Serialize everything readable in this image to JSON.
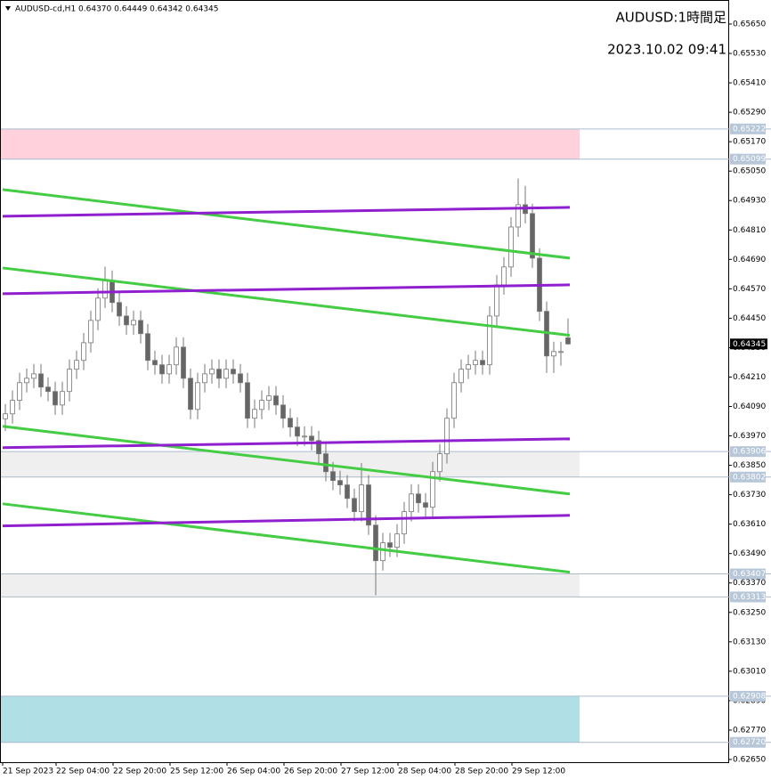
{
  "chart_data": {
    "type": "candlestick",
    "header": "AUDUSD-cd,H1  0.64370 0.64449 0.64342 0.64345",
    "annotations": [
      "AUDUSD:1時間足",
      "2023.10.02 09:41"
    ],
    "open": [
      0.6404,
      0.6406,
      0.64115,
      0.64187,
      0.64205,
      0.64223,
      0.64169,
      0.64151,
      0.64096,
      0.64151,
      0.64242,
      0.64278,
      0.6435,
      0.64441,
      0.64532,
      0.64605,
      0.64514,
      0.64459,
      0.64423,
      0.64441,
      0.64387,
      0.64278,
      0.6426,
      0.64223,
      0.6426,
      0.64332,
      0.64205,
      0.64078,
      0.64187,
      0.64223,
      0.64242,
      0.64205,
      0.64242,
      0.64223,
      0.64187,
      0.64042,
      0.64078,
      0.64115,
      0.64133,
      0.64096,
      0.64042,
      0.64006,
      0.63969,
      0.63969,
      0.63951,
      0.63897,
      0.63824,
      0.63788,
      0.6377,
      0.63715,
      0.63661,
      0.6377,
      0.63606,
      0.63461,
      0.63534,
      0.63516,
      0.6357,
      0.63661,
      0.63733,
      0.63697,
      0.63679,
      0.63824,
      0.63897,
      0.64042,
      0.64187,
      0.64242,
      0.6426,
      0.64278,
      0.6426,
      0.64459,
      0.64586,
      0.64659,
      0.64822,
      0.64913,
      0.64877,
      0.64695,
      0.64478,
      0.64296,
      0.64314,
      0.6437
    ],
    "high": [
      0.641,
      0.64155,
      0.64227,
      0.64245,
      0.64263,
      0.64263,
      0.64209,
      0.64191,
      0.64191,
      0.64282,
      0.64318,
      0.6439,
      0.64481,
      0.64572,
      0.6466,
      0.64645,
      0.64554,
      0.64499,
      0.64481,
      0.64481,
      0.64427,
      0.64318,
      0.643,
      0.643,
      0.64372,
      0.64372,
      0.64245,
      0.64227,
      0.64263,
      0.64282,
      0.64282,
      0.64282,
      0.64282,
      0.64263,
      0.64227,
      0.64118,
      0.64155,
      0.64173,
      0.64173,
      0.64136,
      0.64082,
      0.64046,
      0.64009,
      0.64009,
      0.63991,
      0.63937,
      0.63864,
      0.63828,
      0.6381,
      0.63755,
      0.6386,
      0.6381,
      0.63646,
      0.63574,
      0.63574,
      0.6361,
      0.63701,
      0.63773,
      0.63773,
      0.63737,
      0.63864,
      0.63937,
      0.64082,
      0.64227,
      0.64282,
      0.643,
      0.64318,
      0.64318,
      0.64499,
      0.64626,
      0.64699,
      0.64862,
      0.6502,
      0.6499,
      0.64917,
      0.64735,
      0.64518,
      0.64354,
      0.64354,
      0.64449
    ],
    "low": [
      0.6399,
      0.6402,
      0.64075,
      0.64147,
      0.64165,
      0.64129,
      0.64111,
      0.64056,
      0.64056,
      0.64111,
      0.64202,
      0.64238,
      0.6431,
      0.64401,
      0.64492,
      0.64474,
      0.64419,
      0.64383,
      0.64383,
      0.64347,
      0.64238,
      0.6422,
      0.64183,
      0.64183,
      0.6422,
      0.64165,
      0.64038,
      0.64038,
      0.64147,
      0.64183,
      0.64165,
      0.64165,
      0.64183,
      0.64147,
      0.64002,
      0.64002,
      0.64038,
      0.64075,
      0.64056,
      0.64002,
      0.63966,
      0.63929,
      0.63929,
      0.63911,
      0.63857,
      0.63784,
      0.63748,
      0.6373,
      0.63675,
      0.63621,
      0.63621,
      0.63566,
      0.6332,
      0.63421,
      0.63476,
      0.63476,
      0.6353,
      0.63621,
      0.63657,
      0.63639,
      0.63639,
      0.63784,
      0.63857,
      0.64002,
      0.64147,
      0.64202,
      0.6422,
      0.6422,
      0.6422,
      0.64419,
      0.64546,
      0.64619,
      0.64782,
      0.64837,
      0.64655,
      0.64438,
      0.64226,
      0.64226,
      0.64256,
      0.64342
    ],
    "close": [
      0.6406,
      0.64115,
      0.64187,
      0.64205,
      0.64223,
      0.64169,
      0.64151,
      0.64096,
      0.64151,
      0.64242,
      0.64278,
      0.6435,
      0.64441,
      0.64532,
      0.64605,
      0.64514,
      0.64459,
      0.64423,
      0.64441,
      0.64387,
      0.64278,
      0.6426,
      0.64223,
      0.6426,
      0.64332,
      0.64205,
      0.64078,
      0.64187,
      0.64223,
      0.64242,
      0.64205,
      0.64242,
      0.64223,
      0.64187,
      0.64042,
      0.64078,
      0.64115,
      0.64133,
      0.64096,
      0.64042,
      0.64006,
      0.63969,
      0.63969,
      0.63951,
      0.63897,
      0.63824,
      0.63788,
      0.6377,
      0.63715,
      0.63661,
      0.6377,
      0.63606,
      0.63461,
      0.63534,
      0.63516,
      0.6357,
      0.63661,
      0.63733,
      0.63697,
      0.63679,
      0.63824,
      0.63897,
      0.64042,
      0.64187,
      0.64242,
      0.6426,
      0.64278,
      0.6426,
      0.64459,
      0.64586,
      0.64659,
      0.64822,
      0.64913,
      0.64877,
      0.64695,
      0.64478,
      0.64296,
      0.64314,
      0.64314,
      0.64345
    ],
    "xticks": [
      {
        "value": 0,
        "label": "21 Sep 2023"
      },
      {
        "value": 7.5,
        "label": "22 Sep 04:00"
      },
      {
        "value": 15.5,
        "label": "22 Sep 20:00"
      },
      {
        "value": 23.5,
        "label": "25 Sep 12:00"
      },
      {
        "value": 31.5,
        "label": "26 Sep 04:00"
      },
      {
        "value": 39.5,
        "label": "26 Sep 20:00"
      },
      {
        "value": 47.5,
        "label": "27 Sep 12:00"
      },
      {
        "value": 55.5,
        "label": "28 Sep 04:00"
      },
      {
        "value": 63.5,
        "label": "28 Sep 20:00"
      },
      {
        "value": 71.5,
        "label": "29 Sep 12:00"
      }
    ],
    "ylim": [
      0.62639,
      0.65748
    ],
    "yticks": [
      {
        "value": 0.6565,
        "label": "0.65650"
      },
      {
        "value": 0.6553,
        "label": "0.65530"
      },
      {
        "value": 0.6541,
        "label": "0.65410"
      },
      {
        "value": 0.6529,
        "label": "0.65290"
      },
      {
        "value": 0.6517,
        "label": "0.65170"
      },
      {
        "value": 0.6505,
        "label": "0.65050"
      },
      {
        "value": 0.6493,
        "label": "0.64930"
      },
      {
        "value": 0.6481,
        "label": "0.64810"
      },
      {
        "value": 0.6469,
        "label": "0.64690"
      },
      {
        "value": 0.6457,
        "label": "0.64570"
      },
      {
        "value": 0.6445,
        "label": "0.64450"
      },
      {
        "value": 0.6433,
        "label": "0.64330"
      },
      {
        "value": 0.6421,
        "label": "0.64210"
      },
      {
        "value": 0.6409,
        "label": "0.64090"
      },
      {
        "value": 0.6397,
        "label": "0.63970"
      },
      {
        "value": 0.6385,
        "label": "0.63850"
      },
      {
        "value": 0.6373,
        "label": "0.63730"
      },
      {
        "value": 0.6361,
        "label": "0.63610"
      },
      {
        "value": 0.6349,
        "label": "0.63490"
      },
      {
        "value": 0.6337,
        "label": "0.63370"
      },
      {
        "value": 0.6325,
        "label": "0.63250"
      },
      {
        "value": 0.6313,
        "label": "0.63130"
      },
      {
        "value": 0.6301,
        "label": "0.63010"
      },
      {
        "value": 0.6289,
        "label": "0.62890"
      },
      {
        "value": 0.6277,
        "label": "0.62770"
      },
      {
        "value": 0.6265,
        "label": "0.62650"
      }
    ],
    "zones": [
      {
        "color": "#ffd1dc",
        "from": {
          "value": 0.65222,
          "label": "0.65222"
        },
        "to": {
          "value": 0.65099,
          "label": "0.65099"
        }
      },
      {
        "color": "#efefef",
        "from": {
          "value": 0.63906,
          "label": "0.63906"
        },
        "to": {
          "value": 0.63802,
          "label": "0.63802"
        }
      },
      {
        "color": "#efefef",
        "from": {
          "value": 0.63407,
          "label": "0.63407"
        },
        "to": {
          "value": 0.63313,
          "label": "0.63313"
        }
      },
      {
        "color": "#b0dfe5",
        "from": {
          "value": 0.62908,
          "label": "0.62908"
        },
        "to": {
          "value": 0.6272,
          "label": "0.62720"
        }
      }
    ],
    "trendlines": [
      {
        "color": "#44cc44",
        "from": 0.64975,
        "to": 0.64695
      },
      {
        "color": "#44cc44",
        "from": 0.64655,
        "to": 0.6438
      },
      {
        "color": "#44cc44",
        "from": 0.64009,
        "to": 0.63733
      },
      {
        "color": "#44cc44",
        "from": 0.63693,
        "to": 0.63414
      },
      {
        "color": "#8f1fcf",
        "from": 0.64866,
        "to": 0.64902
      },
      {
        "color": "#8f1fcf",
        "from": 0.6455,
        "to": 0.64586
      },
      {
        "color": "#8f1fcf",
        "from": 0.63922,
        "to": 0.63958
      },
      {
        "color": "#8f1fcf",
        "from": 0.63603,
        "to": 0.63646
      }
    ],
    "current_price": {
      "value": 0.64345,
      "label": "0.64345"
    }
  }
}
